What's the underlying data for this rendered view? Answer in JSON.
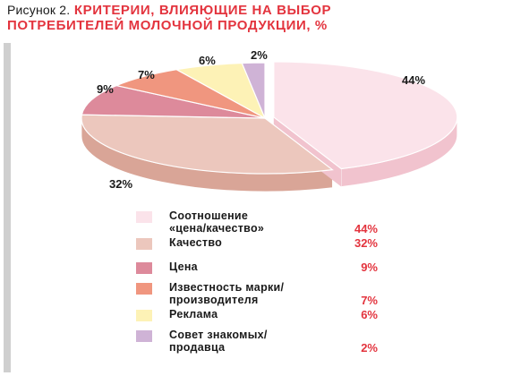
{
  "title": {
    "prefix": "Рисунок 2.",
    "main": "КРИТЕРИИ, ВЛИЯЮЩИЕ НА ВЫБОР",
    "line2": "ПОТРЕБИТЕЛЕЙ МОЛОЧНОЙ ПРОДУКЦИИ, %"
  },
  "colors": {
    "title": "#e3343e",
    "legend_value": "#e3343e",
    "panel_bar": "#cfcfcf"
  },
  "chart_data": {
    "type": "pie",
    "style": "3d-exploded",
    "title": "КРИТЕРИИ, ВЛИЯЮЩИЕ НА ВЫБОР ПОТРЕБИТЕЛЕЙ МОЛОЧНОЙ ПРОДУКЦИИ, %",
    "unit": "%",
    "legend_position": "bottom",
    "slices": [
      {
        "label": "Соотношение «цена/качество»",
        "value": 44,
        "display": "44%",
        "color": "#fbe3ea",
        "side": "#f1c3ce"
      },
      {
        "label": "Качество",
        "value": 32,
        "display": "32%",
        "color": "#ecc7bd",
        "side": "#d9a597"
      },
      {
        "label": "Цена",
        "value": 9,
        "display": "9%",
        "color": "#dd8a9b",
        "side": "#c56b7e"
      },
      {
        "label": "Известность марки/ производителя",
        "value": 7,
        "display": "7%",
        "color": "#f0967f",
        "side": "#d97660"
      },
      {
        "label": "Реклама",
        "value": 6,
        "display": "6%",
        "color": "#fdf2b6",
        "side": "#e8d98a"
      },
      {
        "label": "Совет знакомых/ продавца",
        "value": 2,
        "display": "2%",
        "color": "#cfb3d6",
        "side": "#b394bd"
      }
    ]
  },
  "legend": [
    {
      "text": "Соотношение\n«цена/качество»",
      "value": "44%"
    },
    {
      "text": "Качество",
      "value": "32%"
    },
    {
      "text": "Цена",
      "value": "9%"
    },
    {
      "text": "Известность марки/\nпроизводителя",
      "value": "7%"
    },
    {
      "text": "Реклама",
      "value": "6%"
    },
    {
      "text": "Совет знакомых/\nпродавца",
      "value": "2%"
    }
  ]
}
